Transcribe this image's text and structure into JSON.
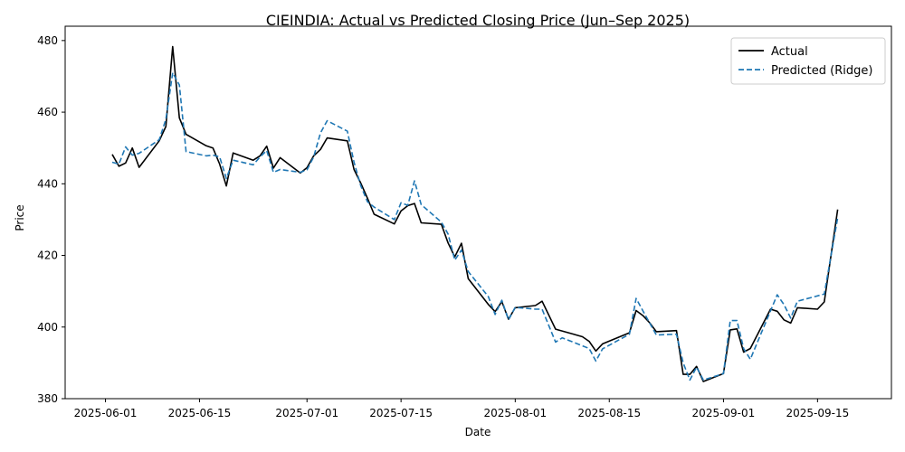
{
  "chart_data": {
    "type": "line",
    "title": "CIEINDIA: Actual vs Predicted Closing Price (Jun–Sep 2025)",
    "xlabel": "Date",
    "ylabel": "Price",
    "xlim": [
      "2025-05-26",
      "2025-09-26"
    ],
    "ylim": [
      380,
      484
    ],
    "x_ticks": [
      "2025-06-01",
      "2025-06-15",
      "2025-07-01",
      "2025-07-15",
      "2025-08-01",
      "2025-08-15",
      "2025-09-01",
      "2025-09-15"
    ],
    "y_ticks": [
      380,
      400,
      420,
      440,
      460,
      480
    ],
    "grid": false,
    "legend": "top-right",
    "series": [
      {
        "name": "Actual",
        "color": "#000000",
        "style": "solid",
        "points": [
          [
            "2025-06-02",
            448.2
          ],
          [
            "2025-06-03",
            444.9
          ],
          [
            "2025-06-04",
            445.8
          ],
          [
            "2025-06-05",
            450.0
          ],
          [
            "2025-06-06",
            444.6
          ],
          [
            "2025-06-09",
            452.0
          ],
          [
            "2025-06-10",
            456.0
          ],
          [
            "2025-06-11",
            478.3
          ],
          [
            "2025-06-12",
            458.4
          ],
          [
            "2025-06-13",
            453.8
          ],
          [
            "2025-06-16",
            450.6
          ],
          [
            "2025-06-17",
            450.0
          ],
          [
            "2025-06-18",
            445.5
          ],
          [
            "2025-06-19",
            439.4
          ],
          [
            "2025-06-20",
            448.6
          ],
          [
            "2025-06-23",
            446.6
          ],
          [
            "2025-06-24",
            447.8
          ],
          [
            "2025-06-25",
            450.5
          ],
          [
            "2025-06-26",
            444.4
          ],
          [
            "2025-06-27",
            447.3
          ],
          [
            "2025-06-30",
            443.0
          ],
          [
            "2025-07-01",
            444.5
          ],
          [
            "2025-07-02",
            447.8
          ],
          [
            "2025-07-03",
            449.6
          ],
          [
            "2025-07-04",
            452.8
          ],
          [
            "2025-07-07",
            452.0
          ],
          [
            "2025-07-08",
            444.0
          ],
          [
            "2025-07-09",
            440.2
          ],
          [
            "2025-07-10",
            436.0
          ],
          [
            "2025-07-11",
            431.5
          ],
          [
            "2025-07-14",
            428.8
          ],
          [
            "2025-07-15",
            432.4
          ],
          [
            "2025-07-16",
            433.9
          ],
          [
            "2025-07-17",
            434.5
          ],
          [
            "2025-07-18",
            429.1
          ],
          [
            "2025-07-21",
            428.7
          ],
          [
            "2025-07-22",
            423.5
          ],
          [
            "2025-07-23",
            419.6
          ],
          [
            "2025-07-24",
            423.4
          ],
          [
            "2025-07-25",
            413.5
          ],
          [
            "2025-07-28",
            406.3
          ],
          [
            "2025-07-29",
            404.3
          ],
          [
            "2025-07-30",
            407.1
          ],
          [
            "2025-07-31",
            402.2
          ],
          [
            "2025-08-01",
            405.4
          ],
          [
            "2025-08-04",
            406.0
          ],
          [
            "2025-08-05",
            407.2
          ],
          [
            "2025-08-07",
            399.4
          ],
          [
            "2025-08-11",
            397.3
          ],
          [
            "2025-08-12",
            396.0
          ],
          [
            "2025-08-13",
            393.3
          ],
          [
            "2025-08-14",
            395.3
          ],
          [
            "2025-08-18",
            398.4
          ],
          [
            "2025-08-19",
            404.6
          ],
          [
            "2025-08-20",
            403.2
          ],
          [
            "2025-08-21",
            401.2
          ],
          [
            "2025-08-22",
            398.7
          ],
          [
            "2025-08-25",
            399.0
          ],
          [
            "2025-08-26",
            386.8
          ],
          [
            "2025-08-27",
            386.8
          ],
          [
            "2025-08-28",
            389.0
          ],
          [
            "2025-08-29",
            384.8
          ],
          [
            "2025-09-01",
            387.0
          ],
          [
            "2025-09-02",
            399.2
          ],
          [
            "2025-09-03",
            399.5
          ],
          [
            "2025-09-04",
            393.0
          ],
          [
            "2025-09-05",
            394.0
          ],
          [
            "2025-09-08",
            405.0
          ],
          [
            "2025-09-09",
            404.4
          ],
          [
            "2025-09-10",
            402.0
          ],
          [
            "2025-09-11",
            401.1
          ],
          [
            "2025-09-12",
            405.4
          ],
          [
            "2025-09-15",
            405.0
          ],
          [
            "2025-09-16",
            407.0
          ],
          [
            "2025-09-18",
            432.8
          ]
        ]
      },
      {
        "name": "Predicted (Ridge)",
        "color": "#1f77b4",
        "style": "dashed",
        "points": [
          [
            "2025-06-02",
            446.0
          ],
          [
            "2025-06-03",
            445.5
          ],
          [
            "2025-06-04",
            450.3
          ],
          [
            "2025-06-05",
            448.0
          ],
          [
            "2025-06-06",
            448.5
          ],
          [
            "2025-06-09",
            452.3
          ],
          [
            "2025-06-10",
            458.0
          ],
          [
            "2025-06-11",
            471.0
          ],
          [
            "2025-06-12",
            467.6
          ],
          [
            "2025-06-13",
            449.0
          ],
          [
            "2025-06-16",
            447.8
          ],
          [
            "2025-06-17",
            448.0
          ],
          [
            "2025-06-18",
            447.5
          ],
          [
            "2025-06-19",
            441.5
          ],
          [
            "2025-06-20",
            446.6
          ],
          [
            "2025-06-23",
            445.3
          ],
          [
            "2025-06-24",
            447.5
          ],
          [
            "2025-06-25",
            449.3
          ],
          [
            "2025-06-26",
            443.2
          ],
          [
            "2025-06-27",
            444.0
          ],
          [
            "2025-06-30",
            443.2
          ],
          [
            "2025-07-01",
            443.9
          ],
          [
            "2025-07-02",
            447.5
          ],
          [
            "2025-07-03",
            454.2
          ],
          [
            "2025-07-04",
            457.6
          ],
          [
            "2025-07-07",
            454.7
          ],
          [
            "2025-07-08",
            446.0
          ],
          [
            "2025-07-09",
            439.5
          ],
          [
            "2025-07-10",
            435.0
          ],
          [
            "2025-07-11",
            433.5
          ],
          [
            "2025-07-14",
            430.0
          ],
          [
            "2025-07-15",
            434.7
          ],
          [
            "2025-07-16",
            434.0
          ],
          [
            "2025-07-17",
            440.8
          ],
          [
            "2025-07-18",
            434.2
          ],
          [
            "2025-07-21",
            429.3
          ],
          [
            "2025-07-22",
            426.0
          ],
          [
            "2025-07-23",
            418.7
          ],
          [
            "2025-07-24",
            421.5
          ],
          [
            "2025-07-25",
            415.5
          ],
          [
            "2025-07-28",
            408.5
          ],
          [
            "2025-07-29",
            403.5
          ],
          [
            "2025-07-30",
            407.5
          ],
          [
            "2025-07-31",
            402.0
          ],
          [
            "2025-08-01",
            405.5
          ],
          [
            "2025-08-04",
            405.0
          ],
          [
            "2025-08-05",
            405.0
          ],
          [
            "2025-08-07",
            395.8
          ],
          [
            "2025-08-08",
            397.0
          ],
          [
            "2025-08-12",
            394.0
          ],
          [
            "2025-08-13",
            390.5
          ],
          [
            "2025-08-14",
            393.9
          ],
          [
            "2025-08-18",
            398.0
          ],
          [
            "2025-08-19",
            408.0
          ],
          [
            "2025-08-20",
            404.5
          ],
          [
            "2025-08-22",
            397.8
          ],
          [
            "2025-08-25",
            398.0
          ],
          [
            "2025-08-26",
            390.0
          ],
          [
            "2025-08-27",
            385.2
          ],
          [
            "2025-08-28",
            388.8
          ],
          [
            "2025-08-29",
            385.2
          ],
          [
            "2025-09-01",
            387.0
          ],
          [
            "2025-09-02",
            401.8
          ],
          [
            "2025-09-03",
            401.8
          ],
          [
            "2025-09-04",
            394.0
          ],
          [
            "2025-09-05",
            391.0
          ],
          [
            "2025-09-06",
            395.5
          ],
          [
            "2025-09-08",
            404.5
          ],
          [
            "2025-09-09",
            409.0
          ],
          [
            "2025-09-10",
            406.3
          ],
          [
            "2025-09-11",
            402.5
          ],
          [
            "2025-09-12",
            407.2
          ],
          [
            "2025-09-16",
            409.2
          ],
          [
            "2025-09-18",
            430.5
          ]
        ]
      }
    ]
  }
}
